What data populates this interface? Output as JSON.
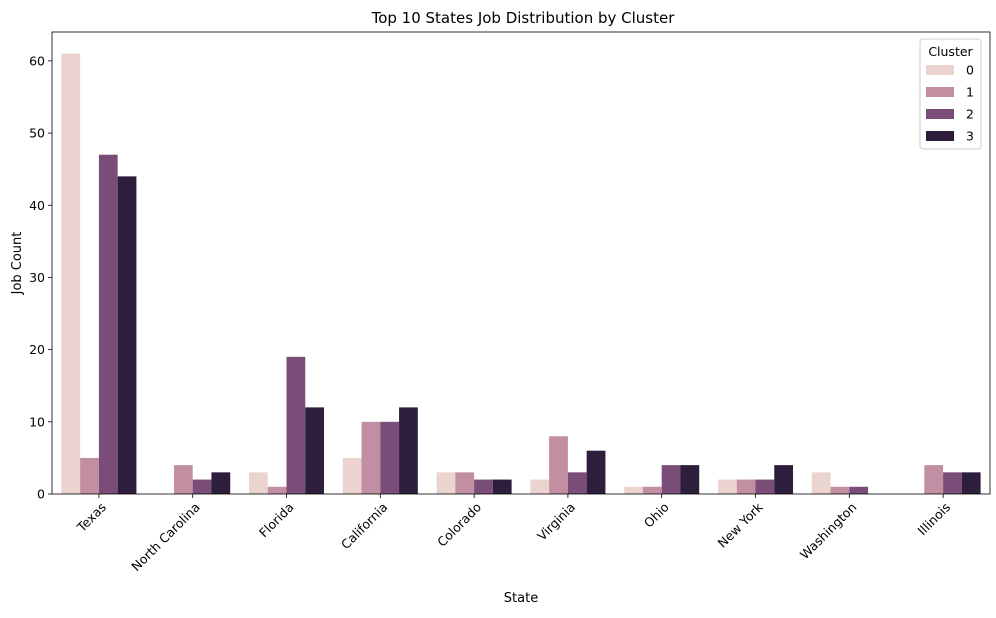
{
  "chart_data": {
    "type": "bar",
    "title": "Top 10 States Job Distribution by Cluster",
    "xlabel": "State",
    "ylabel": "Job Count",
    "ylim": [
      0,
      64
    ],
    "yticks": [
      0,
      10,
      20,
      30,
      40,
      50,
      60
    ],
    "grid": false,
    "legend": {
      "title": "Cluster",
      "placement": "top-right"
    },
    "categories": [
      "Texas",
      "North Carolina",
      "Florida",
      "California",
      "Colorado",
      "Virginia",
      "Ohio",
      "New York",
      "Washington",
      "Illinois"
    ],
    "series": [
      {
        "name": "0",
        "color": "#ebd4d0",
        "values": [
          61,
          0,
          3,
          5,
          3,
          2,
          1,
          2,
          3,
          0
        ]
      },
      {
        "name": "1",
        "color": "#c28fa2",
        "values": [
          5,
          4,
          1,
          10,
          3,
          8,
          1,
          2,
          1,
          4
        ]
      },
      {
        "name": "2",
        "color": "#7a4d78",
        "values": [
          47,
          2,
          19,
          10,
          2,
          3,
          4,
          2,
          1,
          3
        ]
      },
      {
        "name": "3",
        "color": "#2d1e3b",
        "values": [
          44,
          3,
          12,
          12,
          2,
          6,
          4,
          4,
          0,
          3
        ]
      }
    ]
  }
}
